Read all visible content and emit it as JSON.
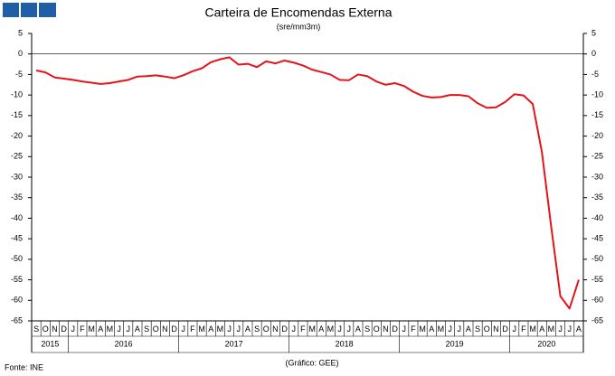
{
  "chart_data": {
    "type": "line",
    "title": "Carteira de Encomendas Externa",
    "subtitle": "(sre/mm3m)",
    "source": "Fonte: INE",
    "credit": "(Gráfico: GEE)",
    "categories": [
      "S",
      "O",
      "N",
      "D",
      "J",
      "F",
      "M",
      "A",
      "M",
      "J",
      "J",
      "A",
      "S",
      "O",
      "N",
      "D",
      "J",
      "F",
      "M",
      "A",
      "M",
      "J",
      "J",
      "A",
      "S",
      "O",
      "N",
      "D",
      "J",
      "F",
      "M",
      "A",
      "M",
      "J",
      "J",
      "A",
      "S",
      "O",
      "N",
      "D",
      "J",
      "F",
      "M",
      "A",
      "M",
      "J",
      "J",
      "A",
      "S",
      "O",
      "N",
      "D",
      "J",
      "F",
      "M",
      "A",
      "M",
      "J",
      "J",
      "A"
    ],
    "years": [
      "2015",
      "2016",
      "2017",
      "2018",
      "2019",
      "2020"
    ],
    "series": [
      {
        "name": "Carteira de Encomendas Externa",
        "color": "#e3141b",
        "values": [
          -4.0,
          -4.5,
          -5.7,
          -6.0,
          -6.3,
          -6.7,
          -7.0,
          -7.3,
          -7.1,
          -6.7,
          -6.3,
          -5.5,
          -5.4,
          -5.2,
          -5.5,
          -5.9,
          -5.2,
          -4.2,
          -3.5,
          -2.0,
          -1.3,
          -0.8,
          -2.6,
          -2.4,
          -3.2,
          -1.8,
          -2.3,
          -1.6,
          -2.1,
          -2.8,
          -3.8,
          -4.4,
          -5.0,
          -6.3,
          -6.4,
          -5.0,
          -5.4,
          -6.7,
          -7.5,
          -7.1,
          -7.8,
          -9.2,
          -10.2,
          -10.6,
          -10.5,
          -10.0,
          -10.0,
          -10.3,
          -12.0,
          -13.1,
          -13.0,
          -11.7,
          -9.8,
          -10.1,
          -12.2,
          -24,
          -42,
          -59,
          -62,
          -55
        ]
      }
    ],
    "ylim": [
      -65,
      5
    ],
    "yticks": [
      5,
      0,
      -5,
      -10,
      -15,
      -20,
      -25,
      -30,
      -35,
      -40,
      -45,
      -50,
      -55,
      -60,
      -65
    ],
    "grid": false
  }
}
